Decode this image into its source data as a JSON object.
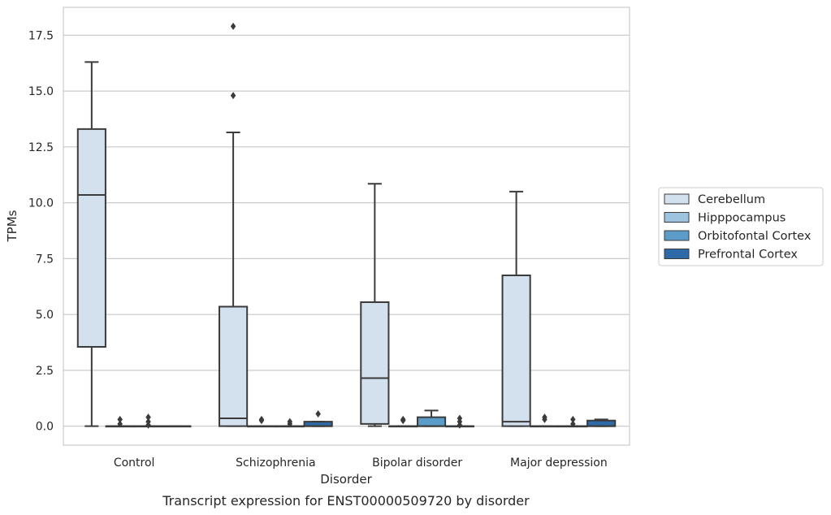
{
  "caption": "Transcript expression for ENST00000509720 by disorder",
  "chart_data": {
    "type": "box",
    "xlabel": "Disorder",
    "ylabel": "TPMs",
    "ylim": [
      -0.85,
      18.75
    ],
    "yticks": [
      0.0,
      2.5,
      5.0,
      7.5,
      10.0,
      12.5,
      15.0,
      17.5
    ],
    "ytick_labels": [
      "0.0",
      "2.5",
      "5.0",
      "7.5",
      "10.0",
      "12.5",
      "15.0",
      "17.5"
    ],
    "grid": "horizontal",
    "legend_position": "right",
    "categories": [
      "Control",
      "Schizophrenia",
      "Bipolar disorder",
      "Major depression"
    ],
    "series": [
      {
        "name": "Cerebellum",
        "color": "#d3e1ef",
        "boxes": [
          {
            "q1": 3.55,
            "median": 10.35,
            "q3": 13.3,
            "whislo": 0.0,
            "whishi": 16.3,
            "fliers": []
          },
          {
            "q1": 0.0,
            "median": 0.35,
            "q3": 5.35,
            "whislo": 0.0,
            "whishi": 13.15,
            "fliers": [
              14.8,
              17.9
            ]
          },
          {
            "q1": 0.1,
            "median": 2.15,
            "q3": 5.55,
            "whislo": 0.0,
            "whishi": 10.85,
            "fliers": []
          },
          {
            "q1": 0.0,
            "median": 0.2,
            "q3": 6.75,
            "whislo": 0.0,
            "whishi": 10.5,
            "fliers": []
          }
        ]
      },
      {
        "name": "Hipppocampus",
        "color": "#9dc3df",
        "boxes": [
          {
            "q1": 0.0,
            "median": 0.0,
            "q3": 0.0,
            "whislo": 0.0,
            "whishi": 0.0,
            "fliers": [
              0.1,
              0.3
            ]
          },
          {
            "q1": 0.0,
            "median": 0.0,
            "q3": 0.0,
            "whislo": 0.0,
            "whishi": 0.0,
            "fliers": [
              0.25,
              0.3
            ]
          },
          {
            "q1": 0.0,
            "median": 0.0,
            "q3": 0.0,
            "whislo": 0.0,
            "whishi": 0.0,
            "fliers": [
              0.25,
              0.3
            ]
          },
          {
            "q1": 0.0,
            "median": 0.0,
            "q3": 0.0,
            "whislo": 0.0,
            "whishi": 0.0,
            "fliers": [
              0.3,
              0.4
            ]
          }
        ]
      },
      {
        "name": "Orbitofontal Cortex",
        "color": "#5b9dc8",
        "boxes": [
          {
            "q1": 0.0,
            "median": 0.0,
            "q3": 0.0,
            "whislo": 0.0,
            "whishi": 0.0,
            "fliers": [
              0.05,
              0.2,
              0.4
            ]
          },
          {
            "q1": 0.0,
            "median": 0.0,
            "q3": 0.0,
            "whislo": 0.0,
            "whishi": 0.0,
            "fliers": [
              0.1,
              0.2
            ]
          },
          {
            "q1": 0.0,
            "median": 0.0,
            "q3": 0.4,
            "whislo": 0.0,
            "whishi": 0.7,
            "fliers": []
          },
          {
            "q1": 0.0,
            "median": 0.0,
            "q3": 0.0,
            "whislo": 0.0,
            "whishi": 0.0,
            "fliers": [
              0.1,
              0.3
            ]
          }
        ]
      },
      {
        "name": "Prefrontal Cortex",
        "color": "#2f6aa8",
        "boxes": [
          {
            "q1": 0.0,
            "median": 0.0,
            "q3": 0.0,
            "whislo": 0.0,
            "whishi": 0.0,
            "fliers": []
          },
          {
            "q1": 0.0,
            "median": 0.0,
            "q3": 0.2,
            "whislo": 0.0,
            "whishi": 0.2,
            "fliers": [
              0.55
            ]
          },
          {
            "q1": 0.0,
            "median": 0.0,
            "q3": 0.0,
            "whislo": 0.0,
            "whishi": 0.0,
            "fliers": [
              0.05,
              0.2,
              0.35
            ]
          },
          {
            "q1": 0.0,
            "median": 0.0,
            "q3": 0.25,
            "whislo": 0.0,
            "whishi": 0.3,
            "fliers": []
          }
        ]
      }
    ]
  }
}
